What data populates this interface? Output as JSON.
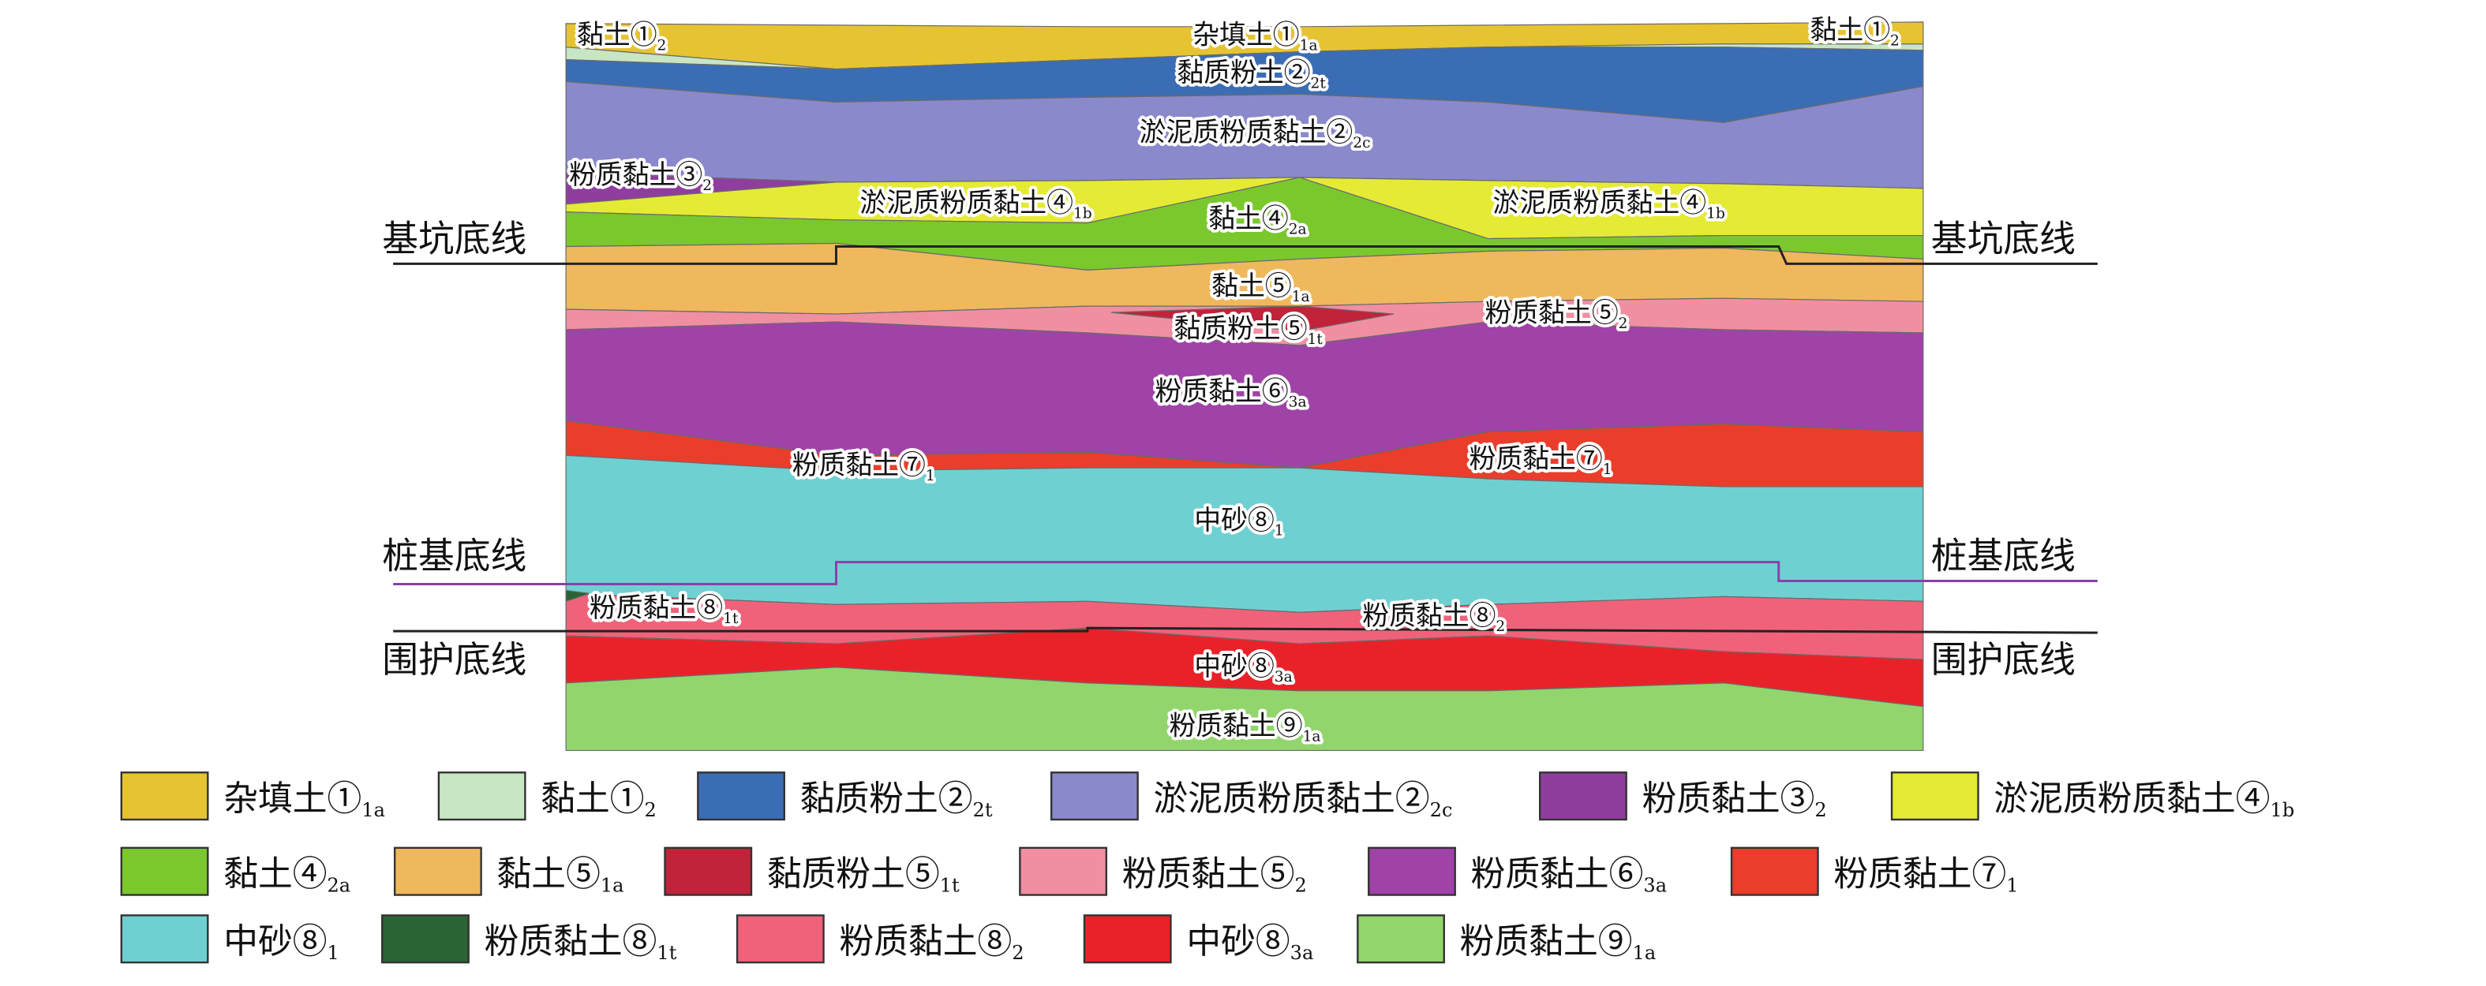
{
  "diagram": {
    "layer_labels": [
      {
        "main": "黏土①",
        "sub": "2"
      },
      {
        "main": "杂填土①",
        "sub": "1a"
      },
      {
        "main": "黏土①",
        "sub": "2"
      },
      {
        "main": "黏质粉土②",
        "sub": "2t"
      },
      {
        "main": "淤泥质粉质黏土②",
        "sub": "2c"
      },
      {
        "main": "粉质黏土③",
        "sub": "2"
      },
      {
        "main": "淤泥质粉质黏土④",
        "sub": "1b"
      },
      {
        "main": "黏土④",
        "sub": "2a"
      },
      {
        "main": "淤泥质粉质黏土④",
        "sub": "1b"
      },
      {
        "main": "黏土⑤",
        "sub": "1a"
      },
      {
        "main": "粉质黏土⑤",
        "sub": "2"
      },
      {
        "main": "黏质粉土⑤",
        "sub": "1t"
      },
      {
        "main": "粉质黏土⑥",
        "sub": "3a"
      },
      {
        "main": "粉质黏土⑦",
        "sub": "1"
      },
      {
        "main": "粉质黏土⑦",
        "sub": "1"
      },
      {
        "main": "中砂⑧",
        "sub": "1"
      },
      {
        "main": "粉质黏土⑧",
        "sub": "1t"
      },
      {
        "main": "粉质黏土⑧",
        "sub": "2"
      },
      {
        "main": "中砂⑧",
        "sub": "3a"
      },
      {
        "main": "粉质黏土⑨",
        "sub": "1a"
      }
    ],
    "reference_lines": [
      {
        "label": "基坑底线",
        "color": "#222222"
      },
      {
        "label": "桩基底线",
        "color": "#8a3fa8"
      },
      {
        "label": "围护底线",
        "color": "#222222"
      }
    ]
  },
  "legend": [
    {
      "main": "杂填土①",
      "sub": "1a",
      "color": "#e6c431"
    },
    {
      "main": "黏土①",
      "sub": "2",
      "color": "#c8e6c4"
    },
    {
      "main": "黏质粉土②",
      "sub": "2t",
      "color": "#3b6db5"
    },
    {
      "main": "淤泥质粉质黏土②",
      "sub": "2c",
      "color": "#8a89cc"
    },
    {
      "main": "粉质黏土③",
      "sub": "2",
      "color": "#8f3e9e"
    },
    {
      "main": "淤泥质粉质黏土④",
      "sub": "1b",
      "color": "#e5ea35"
    },
    {
      "main": "黏土④",
      "sub": "2a",
      "color": "#7ac82e"
    },
    {
      "main": "黏土⑤",
      "sub": "1a",
      "color": "#efb85c"
    },
    {
      "main": "黏质粉土⑤",
      "sub": "1t",
      "color": "#c0233a"
    },
    {
      "main": "粉质黏土⑤",
      "sub": "2",
      "color": "#f08fa2"
    },
    {
      "main": "粉质黏土⑥",
      "sub": "3a",
      "color": "#a043a8"
    },
    {
      "main": "粉质黏土⑦",
      "sub": "1",
      "color": "#ea3d2c"
    },
    {
      "main": "中砂⑧",
      "sub": "1",
      "color": "#6fd0d2"
    },
    {
      "main": "粉质黏土⑧",
      "sub": "1t",
      "color": "#2a6434"
    },
    {
      "main": "粉质黏土⑧",
      "sub": "2",
      "color": "#f0627a"
    },
    {
      "main": "中砂⑧",
      "sub": "3a",
      "color": "#e92229"
    },
    {
      "main": "粉质黏土⑨",
      "sub": "1a",
      "color": "#92d56d"
    }
  ]
}
